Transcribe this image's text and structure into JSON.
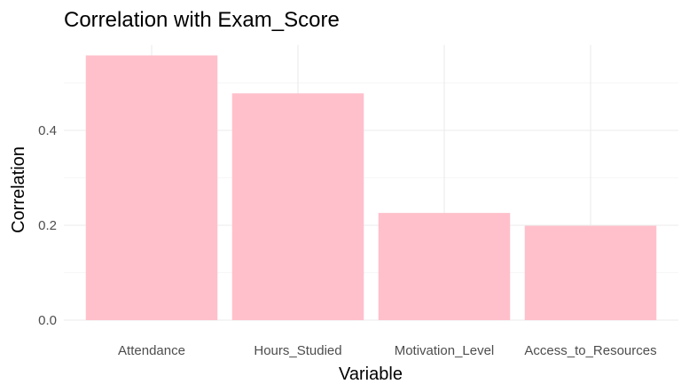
{
  "chart_data": {
    "type": "bar",
    "title": "Correlation with Exam_Score",
    "xlabel": "Variable",
    "ylabel": "Correlation",
    "categories": [
      "Attendance",
      "Hours_Studied",
      "Motivation_Level",
      "Access_to_Resources"
    ],
    "values": [
      0.558,
      0.478,
      0.226,
      0.199
    ],
    "ylim": [
      0,
      0.58
    ],
    "yticks": [
      0.0,
      0.2,
      0.4
    ],
    "ytick_labels": [
      "0.0",
      "0.2",
      "0.4"
    ],
    "grid": true,
    "legend": "none",
    "bar_color": "#ffc0cb",
    "grid_color": "#ebebeb"
  }
}
